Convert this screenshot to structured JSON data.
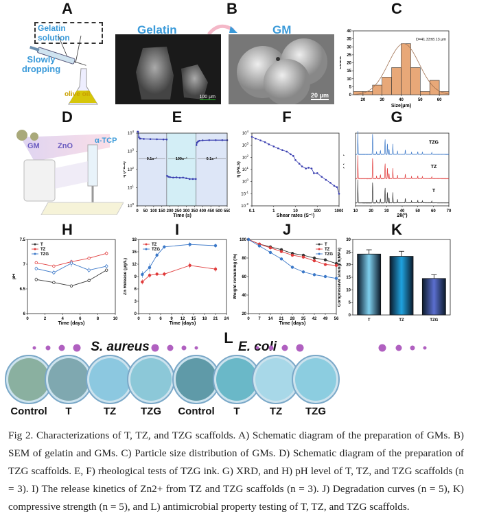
{
  "panel_labels": [
    "A",
    "B",
    "C",
    "D",
    "E",
    "F",
    "G",
    "H",
    "I",
    "J",
    "K",
    "L"
  ],
  "panel_a": {
    "box_label": "Gelatin solution",
    "action": "Slowly dropping",
    "liquid": "olive oil"
  },
  "panel_b": {
    "left_title": "Gelatin",
    "right_title": "GM",
    "left_scale": "100 μm",
    "right_scale": "20 μm"
  },
  "panel_d": {
    "components": [
      "GM",
      "ZnO",
      "α-TCP"
    ]
  },
  "colors": {
    "T": "#333333",
    "TZ": "#e03b3b",
    "TZG": "#3b78c8",
    "hist": "#e8a878",
    "bar_T": "#7fd0ef",
    "bar_TZ": "#1fa3e0",
    "bar_TZG": "#5b6fd0"
  },
  "chart_data": [
    {
      "id": "C",
      "type": "bar",
      "xlabel": "Size(μm)",
      "ylabel": "Count",
      "annotation": "D=41.33±8.13 μm",
      "bin_starts": [
        15,
        20,
        25,
        30,
        35,
        40,
        45,
        50,
        55,
        60
      ],
      "bin_width": 5,
      "values": [
        2,
        2,
        6,
        11,
        17,
        32,
        17,
        2,
        9,
        2
      ],
      "xlim": [
        15,
        65
      ],
      "ylim": [
        0,
        40
      ],
      "xticks": [
        20,
        30,
        40,
        50,
        60
      ],
      "yticks": [
        0,
        5,
        10,
        15,
        20,
        25,
        30,
        35,
        40
      ],
      "fit_curve": "normal"
    },
    {
      "id": "E",
      "type": "scatter",
      "xlabel": "Time (s)",
      "ylabel": "η (Pa.s)",
      "yscale": "log",
      "xlim": [
        0,
        550
      ],
      "ylim_exp": [
        0,
        4
      ],
      "xticks": [
        0,
        50,
        100,
        150,
        200,
        250,
        300,
        350,
        400,
        450,
        500,
        550
      ],
      "yticks_exp": [
        0,
        1,
        2,
        3,
        4
      ],
      "segments": [
        {
          "label": "0.1s⁻¹",
          "x": [
            0,
            180
          ]
        },
        {
          "label": "100s⁻¹",
          "x": [
            180,
            360
          ]
        },
        {
          "label": "0.1s⁻¹",
          "x": [
            360,
            550
          ]
        }
      ],
      "series": [
        {
          "x": [
            2,
            5,
            10,
            15,
            20,
            40,
            80,
            120,
            160,
            180
          ],
          "y": [
            12000,
            12000,
            6000,
            5000,
            5000,
            4800,
            4700,
            4600,
            4500,
            4500
          ]
        },
        {
          "x": [
            182,
            190,
            200,
            220,
            240,
            260,
            280,
            300,
            320,
            340,
            358
          ],
          "y": [
            45,
            40,
            38,
            36,
            37,
            35,
            36,
            33,
            30,
            30,
            30
          ]
        },
        {
          "x": [
            362,
            366,
            372,
            380,
            400,
            440,
            480,
            520,
            550
          ],
          "y": [
            2200,
            3000,
            3500,
            3800,
            4000,
            4100,
            4100,
            4100,
            4100
          ]
        }
      ]
    },
    {
      "id": "F",
      "type": "scatter",
      "xlabel": "Shear rates (S⁻¹)",
      "ylabel": "η (Pa.s)",
      "xscale": "log",
      "yscale": "log",
      "xlim_exp": [
        -1,
        3
      ],
      "ylim_exp": [
        -2,
        4
      ],
      "xticks": [
        "0.1",
        "1",
        "10",
        "100",
        "1000"
      ],
      "yticks_exp": [
        -2,
        -1,
        0,
        1,
        2,
        3,
        4
      ],
      "series": [
        {
          "x": [
            0.1,
            0.15,
            0.25,
            0.4,
            0.6,
            1,
            1.6,
            2.5,
            4,
            6,
            8,
            10,
            15,
            20,
            30,
            40,
            55,
            70,
            100,
            160,
            250,
            400,
            600,
            800,
            1000
          ],
          "y": [
            5000,
            3500,
            2500,
            1800,
            1200,
            800,
            560,
            400,
            300,
            180,
            130,
            60,
            30,
            18,
            12,
            14,
            12,
            5,
            5,
            2.5,
            1.4,
            0.8,
            0.45,
            0.35,
            0.1
          ]
        }
      ]
    },
    {
      "id": "G",
      "type": "line",
      "xlabel": "2θ(°)",
      "ylabel": "Intensity (a.u.)",
      "xlim": [
        10,
        70
      ],
      "xticks": [
        10,
        20,
        30,
        40,
        50,
        60,
        70
      ],
      "peaks_2theta": [
        11.5,
        21,
        23.5,
        26,
        29,
        30.5,
        31.5,
        34,
        37,
        42,
        46,
        50,
        53,
        59
      ],
      "peak_heights": [
        1.0,
        0.95,
        0.12,
        0.18,
        0.7,
        0.5,
        0.25,
        0.45,
        0.15,
        0.2,
        0.1,
        0.12,
        0.1,
        0.08
      ],
      "series": [
        {
          "name": "TZG",
          "color": "#3b78c8"
        },
        {
          "name": "TZ",
          "color": "#e03b3b"
        },
        {
          "name": "T",
          "color": "#333333"
        }
      ]
    },
    {
      "id": "H",
      "type": "line",
      "xlabel": "Time (days)",
      "ylabel": "pH",
      "xlim": [
        0,
        10
      ],
      "ylim": [
        6.0,
        7.5
      ],
      "xticks": [
        0,
        2,
        4,
        6,
        8,
        10
      ],
      "yticks": [
        6.0,
        6.5,
        7.0,
        7.5
      ],
      "legend": "top-left",
      "x": [
        1,
        3,
        5,
        7,
        9
      ],
      "series": [
        {
          "name": "T",
          "color": "#333333",
          "values": [
            6.69,
            6.63,
            6.56,
            6.67,
            6.88
          ],
          "err": [
            0.04,
            0.02,
            0.02,
            0.03,
            0.03
          ]
        },
        {
          "name": "TZ",
          "color": "#e03b3b",
          "values": [
            7.03,
            6.96,
            7.05,
            7.12,
            7.22
          ],
          "err": [
            0.03,
            0.03,
            0.03,
            0.03,
            0.04
          ]
        },
        {
          "name": "TZG",
          "color": "#3b78c8",
          "values": [
            6.91,
            6.83,
            7.02,
            6.88,
            6.96
          ],
          "err": [
            0.04,
            0.05,
            0.07,
            0.05,
            0.04
          ]
        }
      ]
    },
    {
      "id": "I",
      "type": "line",
      "xlabel": "Time (days)",
      "ylabel": "Zn Release (μg/L)",
      "xlim": [
        0,
        24
      ],
      "ylim": [
        0,
        18
      ],
      "xticks": [
        0,
        3,
        6,
        9,
        12,
        15,
        18,
        21,
        24
      ],
      "yticks": [
        0,
        3,
        6,
        9,
        12,
        15,
        18
      ],
      "legend": "top-left",
      "x": [
        1,
        3,
        5,
        7,
        14,
        21
      ],
      "series": [
        {
          "name": "TZ",
          "color": "#e03b3b",
          "values": [
            7.7,
            9.3,
            9.6,
            9.6,
            11.7,
            10.8
          ],
          "err": [
            0.6,
            0.6,
            0.4,
            0.5,
            0.7,
            0.6
          ]
        },
        {
          "name": "TZG",
          "color": "#3b78c8",
          "values": [
            9.5,
            11.2,
            14.2,
            16.2,
            16.8,
            16.5
          ],
          "err": [
            0.8,
            1.0,
            0.5,
            0.4,
            0.6,
            0.5
          ]
        }
      ]
    },
    {
      "id": "J",
      "type": "line",
      "xlabel": "Time (days)",
      "ylabel": "Weight remaining (%)",
      "xlim": [
        0,
        56
      ],
      "ylim": [
        20,
        100
      ],
      "xticks": [
        0,
        7,
        14,
        21,
        28,
        35,
        42,
        49,
        56
      ],
      "yticks": [
        20,
        40,
        60,
        80,
        100
      ],
      "legend": "top-right",
      "x": [
        0,
        7,
        14,
        21,
        28,
        35,
        42,
        49,
        56
      ],
      "series": [
        {
          "name": "T",
          "color": "#333333",
          "values": [
            100,
            95,
            92,
            89,
            85,
            83,
            80,
            78,
            74
          ]
        },
        {
          "name": "TZ",
          "color": "#e03b3b",
          "values": [
            100,
            95,
            91,
            87,
            83,
            81,
            77,
            73,
            72
          ]
        },
        {
          "name": "TZG",
          "color": "#3b78c8",
          "values": [
            100,
            93,
            86,
            79,
            70,
            65,
            62,
            60,
            58
          ]
        }
      ]
    },
    {
      "id": "K",
      "type": "bar",
      "ylabel": "Compressive strength(MPa)",
      "ylim": [
        0,
        30
      ],
      "yticks": [
        0,
        5,
        10,
        15,
        20,
        25,
        30
      ],
      "categories": [
        "T",
        "TZ",
        "TZG"
      ],
      "values": [
        24.2,
        23.3,
        14.5
      ],
      "err": [
        1.7,
        2.0,
        1.5
      ]
    }
  ],
  "panel_l": {
    "groups": [
      {
        "species": "S. aureus",
        "dishes": [
          "Control",
          "T",
          "TZ",
          "TZG"
        ]
      },
      {
        "species": "E. coli",
        "dishes": [
          "Control",
          "T",
          "TZ",
          "TZG"
        ]
      }
    ]
  },
  "caption": "Fig 2. Characterizations of T, TZ, and TZG scaffolds. A) Schematic diagram of the preparation of GMs. B) SEM of gelatin and GMs. C) Particle size distribution of GMs. D) Schematic diagram of the preparation of TZG scaffolds. E, F) rheological tests of TZG ink. G) XRD, and H) pH level of T, TZ, and TZG scaffolds (n = 3). I) The release kinetics of Zn2+ from TZ and TZG scaffolds (n = 3). J) Degradation curves (n = 5), K) compressive strength (n = 5), and L) antimicrobial property testing of T, TZ, and TZG scaffolds."
}
